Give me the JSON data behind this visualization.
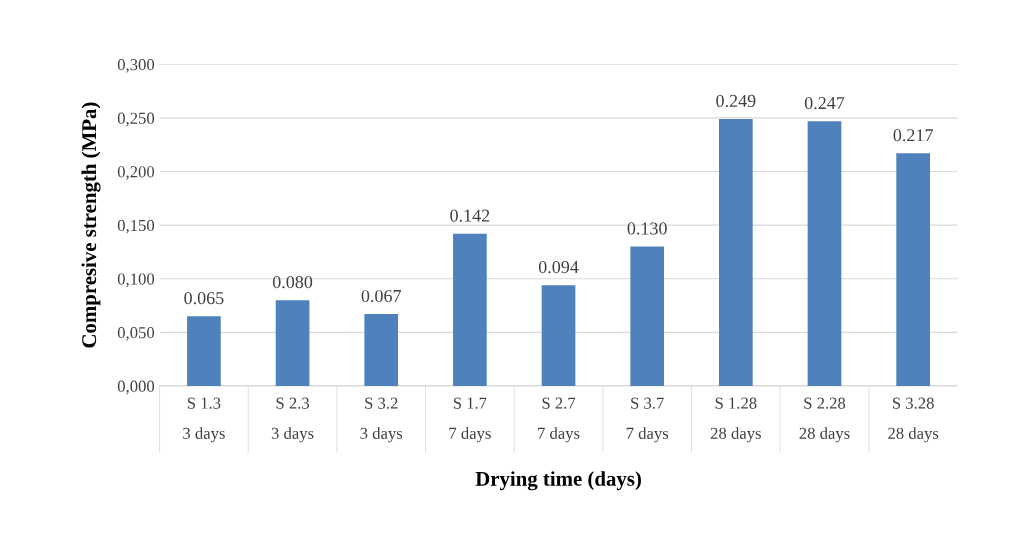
{
  "chart_data": {
    "type": "bar",
    "xlabel": "Drying time (days)",
    "ylabel": "Compresive strength (MPa)",
    "categories": [
      "S 1.3\n3 days",
      "S 2.3\n3 days",
      "S 3.2\n3 days",
      "S 1.7\n7 days",
      "S 2.7\n7 days",
      "S 3.7\n7 days",
      "S 1.28\n28 days",
      "S 2.28\n28 days",
      "S 3.28\n28 days"
    ],
    "values": [
      0.065,
      0.08,
      0.067,
      0.142,
      0.094,
      0.13,
      0.249,
      0.247,
      0.217
    ],
    "value_labels": [
      "0.065",
      "0.080",
      "0.067",
      "0.142",
      "0.094",
      "0.130",
      "0.249",
      "0.247",
      "0.217"
    ],
    "color": "#4f81bd",
    "ylim": [
      0,
      0.3
    ],
    "yticks": [
      {
        "value": 0,
        "label": "0,000"
      },
      {
        "value": 0.05,
        "label": "0,050"
      },
      {
        "value": 0.1,
        "label": "0,100"
      },
      {
        "value": 0.15,
        "label": "0,150"
      },
      {
        "value": 0.2,
        "label": "0,200"
      },
      {
        "value": 0.25,
        "label": "0,250"
      },
      {
        "value": 0.3,
        "label": "0,300"
      }
    ],
    "grid": "y",
    "legend": false
  }
}
